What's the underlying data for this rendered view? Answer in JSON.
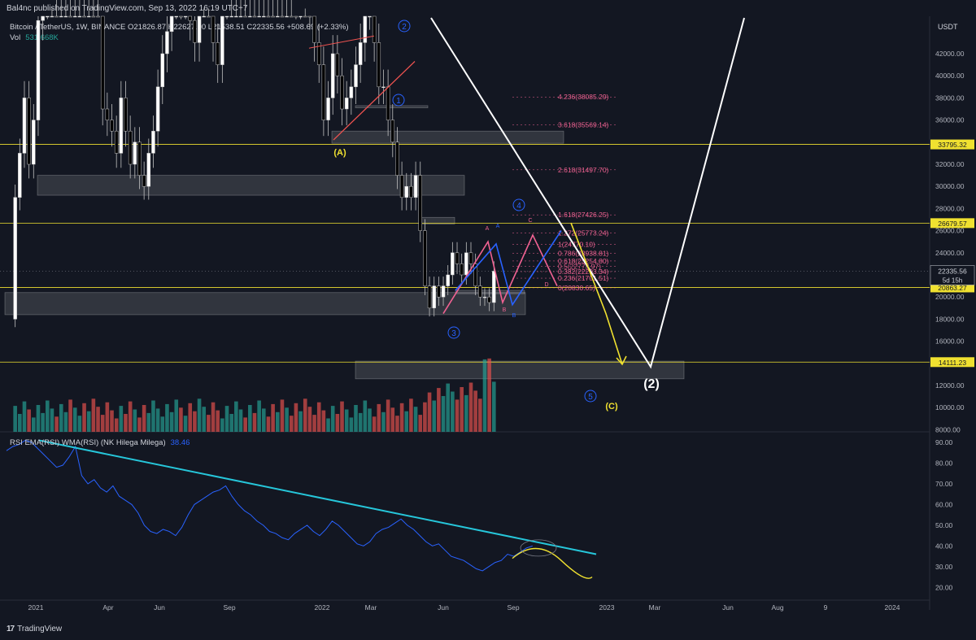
{
  "header": {
    "published": "Bal4nc published on TradingView.com, Sep 13, 2022 16:19 UTC+7",
    "symbol_line": "Bitcoin / TetherUS, 1W, BINANCE  O21826.87  H22627.00  L21538.51  C22335.56  +508.69 (+2.33%)",
    "volume_label": "Vol",
    "volume_value": "531.668K",
    "currency": "USDT"
  },
  "rsi_legend": {
    "label": "RSI EMA(RSI) WMA(RSI)  (NK Hilega Milega)",
    "value": "38.46"
  },
  "footer": {
    "brand": "TradingView",
    "logo": "17"
  },
  "colors": {
    "background": "#131722",
    "up": "#ffffff",
    "down": "#000000",
    "volume_up": "#26a69a",
    "volume_down": "#ef5350",
    "rsi": "#2962ff",
    "trendline": "#26c6da",
    "level": "#f0e130",
    "fib": "#f06292",
    "wave": "#2962ff"
  },
  "chart_data": [
    {
      "type": "candlestick",
      "title": "Bitcoin / TetherUS, 1W, BINANCE",
      "ylim": [
        7000,
        44000
      ],
      "y_ticks": [
        "42000.00",
        "40000.00",
        "38000.00",
        "36000.00",
        "34000.00",
        "32000.00",
        "30000.00",
        "28000.00",
        "26000.00",
        "24000.00",
        "22000.00",
        "20000.00",
        "18000.00",
        "16000.00",
        "14000.00",
        "12000.00",
        "10000.00",
        "8000.00"
      ],
      "x_ticks": [
        "2021",
        "Apr",
        "Jun",
        "Sep",
        "2022",
        "Mar",
        "Jun",
        "Sep",
        "2023",
        "Mar",
        "Jun",
        "Aug",
        "9",
        "2024"
      ],
      "price_labels": [
        {
          "value": "33795.32",
          "price": 33795.32,
          "style": "level"
        },
        {
          "value": "26679.57",
          "price": 26679.57,
          "style": "level"
        },
        {
          "value": "20863.27",
          "price": 20863.27,
          "style": "level"
        },
        {
          "value": "14111.23",
          "price": 14111.23,
          "style": "level"
        },
        {
          "value": "22335.56",
          "price": 22335.56,
          "style": "last",
          "countdown": "5d 15h"
        }
      ],
      "fibonacci_levels": [
        {
          "label": "4.236(38085.29)",
          "price": 38085.29
        },
        {
          "label": "3.618(35569.14)",
          "price": 35569.14
        },
        {
          "label": "2.618(31497.70)",
          "price": 31497.7
        },
        {
          "label": "1.618(27426.25)",
          "price": 27426.25
        },
        {
          "label": "1.272(25773.24)",
          "price": 25773.24
        },
        {
          "label": "1(24770.10)",
          "price": 24770.1
        },
        {
          "label": "0.786(23938.81)",
          "price": 23938.81
        },
        {
          "label": "0.618(23254.80)",
          "price": 23254.8
        },
        {
          "label": "0.5(22773.97)",
          "price": 22773.97
        },
        {
          "label": "0.382(22293.34)",
          "price": 22293.34
        },
        {
          "label": "0.236(21701.51)",
          "price": 21701.51
        },
        {
          "label": "0(20830.65)",
          "price": 20830.65
        }
      ],
      "wave_labels": [
        {
          "text": "1",
          "shape": "circle"
        },
        {
          "text": "2",
          "shape": "circle"
        },
        {
          "text": "3",
          "shape": "circle"
        },
        {
          "text": "4",
          "shape": "circle"
        },
        {
          "text": "5",
          "shape": "circle"
        },
        {
          "text": "(A)",
          "shape": "plain"
        },
        {
          "text": "(C)",
          "shape": "plain"
        },
        {
          "text": "(2)",
          "shape": "plain"
        }
      ],
      "pattern_labels": [
        "A",
        "B",
        "C",
        "D",
        "A",
        "B"
      ]
    },
    {
      "type": "line",
      "title": "RSI EMA(RSI) WMA(RSI)  (NK Hilega Milega)",
      "ylim": [
        15,
        95
      ],
      "y_ticks": [
        "90.00",
        "80.00",
        "70.00",
        "60.00",
        "50.00",
        "40.00",
        "30.00",
        "20.00"
      ],
      "last_value": 38.46
    }
  ]
}
